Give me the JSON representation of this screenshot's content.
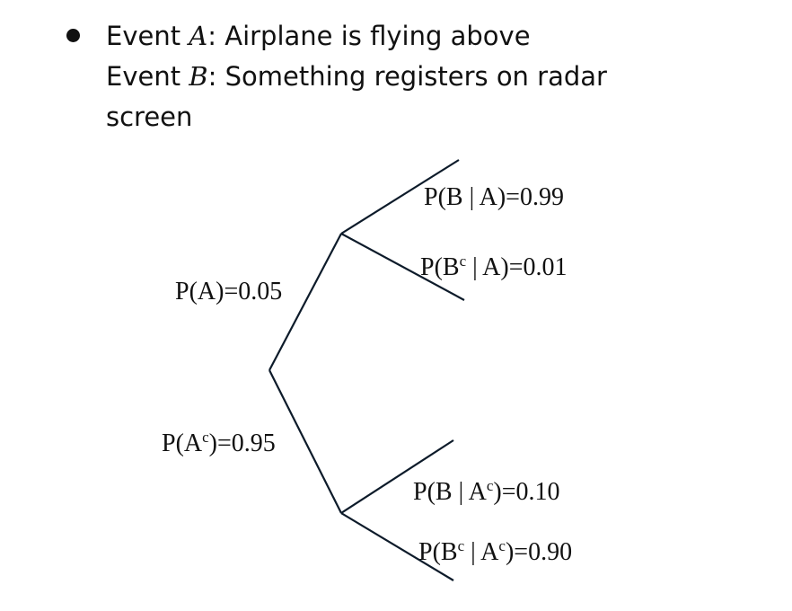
{
  "bullet": {
    "event_a_prefix": "Event ",
    "event_a_var": "A",
    "event_a_text": ": Airplane is flying above",
    "event_b_prefix": "Event ",
    "event_b_var": "B",
    "event_b_text": ": Something registers on radar",
    "event_b_continuation": "screen"
  },
  "tree": {
    "branch_a": {
      "label_pre": "P(A)=0.05",
      "children": {
        "b_given_a": {
          "label_pre": "P(B | A)=0.99"
        },
        "bc_given_a": {
          "label_pre": "P(B",
          "sup1": "c",
          "label_post": " | A)=0.01"
        }
      }
    },
    "branch_ac": {
      "label_pre": "P(A",
      "sup1": "c",
      "label_post": ")=0.95",
      "children": {
        "b_given_ac": {
          "label_pre": "P(B | A",
          "sup1": "c",
          "label_post": ")=0.10"
        },
        "bc_given_ac": {
          "label_pre": "P(B",
          "sup1": "c",
          "label_mid": " | A",
          "sup2": "c",
          "label_post": ")=0.90"
        }
      }
    }
  },
  "colors": {
    "edge": "#0d1b2a",
    "text": "#111111"
  }
}
